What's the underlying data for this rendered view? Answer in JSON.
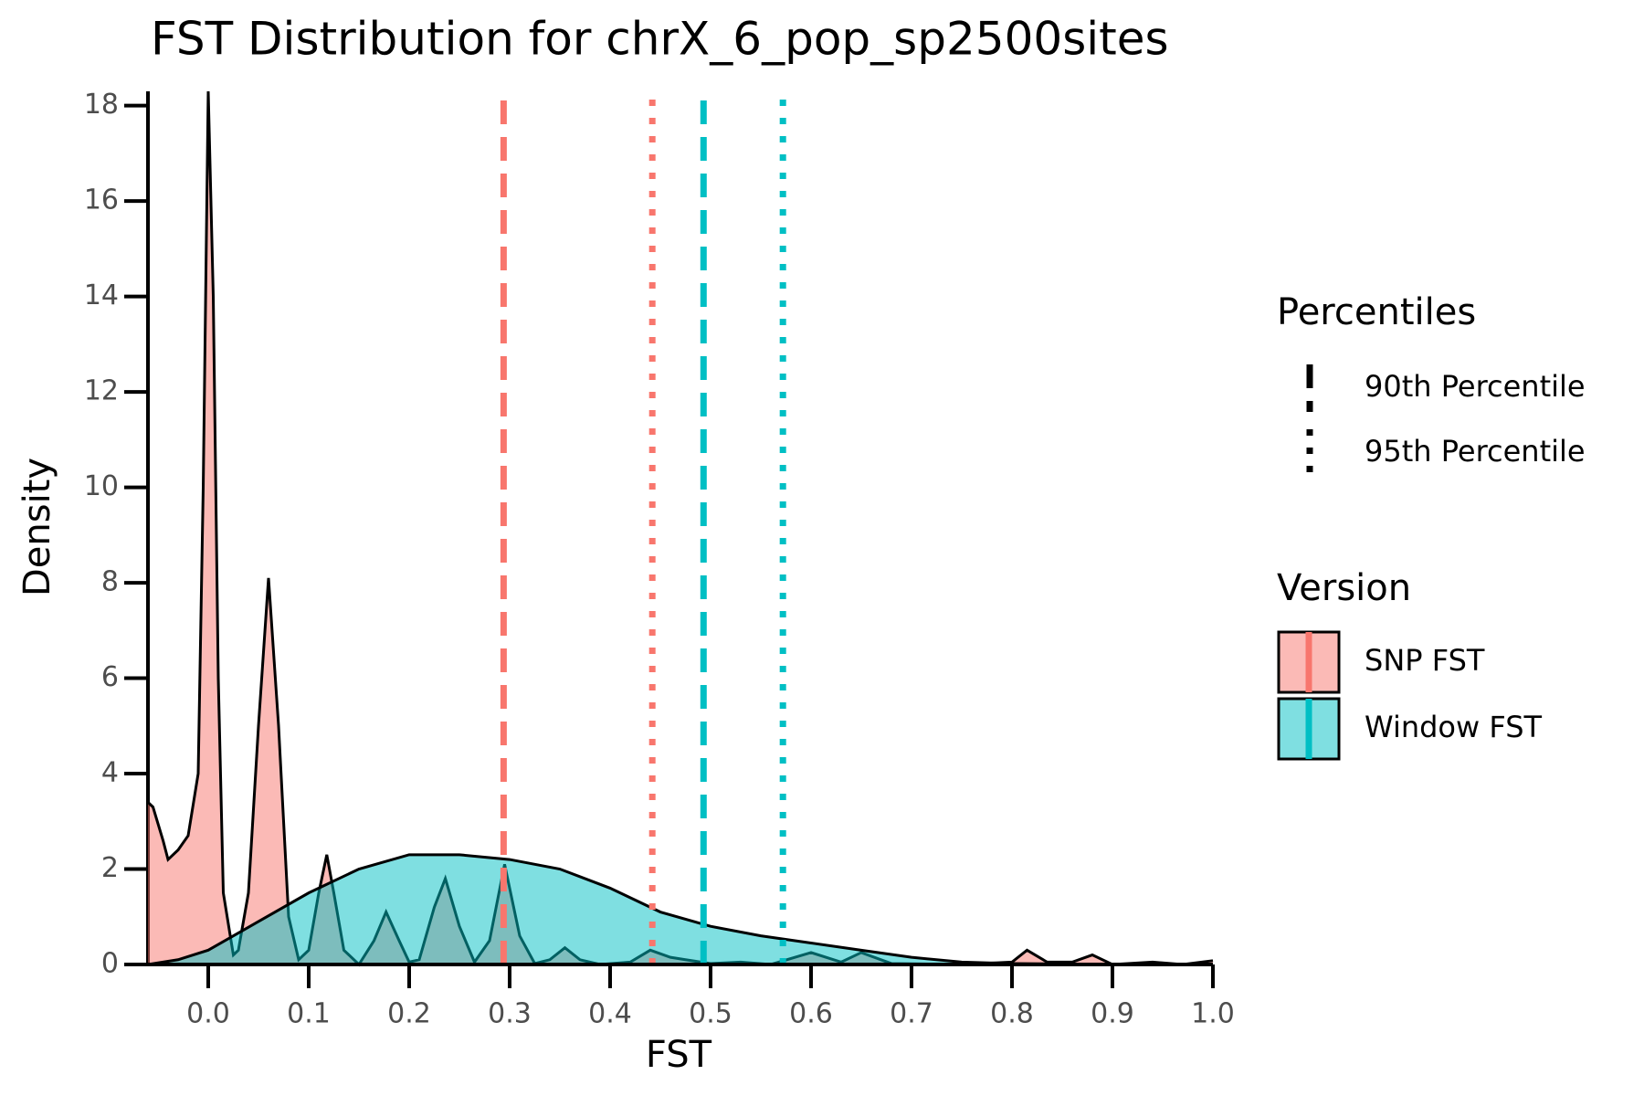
{
  "chart_data": {
    "type": "density",
    "title": "FST Distribution for chrX_6_pop_sp2500sites",
    "x_label": "FST",
    "y_label": "Density",
    "xlim": [
      -0.06,
      1.0
    ],
    "ylim": [
      0,
      18.3
    ],
    "xticks": [
      {
        "value": 0,
        "label": "0.0"
      },
      0.1,
      0.2,
      0.3,
      0.4,
      0.5,
      0.6,
      0.7,
      0.8,
      0.9,
      {
        "value": 1,
        "label": "1.0"
      }
    ],
    "yticks": [
      0,
      2,
      4,
      6,
      8,
      10,
      12,
      14,
      16,
      18
    ],
    "legend_title": "Version",
    "percentile_legend_title": "Percentiles",
    "line_styles": [
      {
        "label": "90th Percentile",
        "dash": "dashed"
      },
      {
        "label": "95th Percentile",
        "dash": "dotted"
      }
    ],
    "series": [
      {
        "name": "SNP FST",
        "color": "#F8766D",
        "percentiles": [
          0.294,
          0.442
        ],
        "x": [
          -0.06,
          -0.055,
          -0.045,
          -0.04,
          -0.03,
          -0.02,
          -0.01,
          -0.005,
          0,
          0.005,
          0.01,
          0.015,
          0.025,
          0.03,
          0.04,
          0.05,
          0.06,
          0.07,
          0.08,
          0.09,
          0.1,
          0.11,
          0.118,
          0.125,
          0.135,
          0.15,
          0.165,
          0.177,
          0.19,
          0.2,
          0.21,
          0.225,
          0.236,
          0.25,
          0.265,
          0.28,
          0.295,
          0.31,
          0.325,
          0.34,
          0.355,
          0.37,
          0.39,
          0.42,
          0.44,
          0.46,
          0.475,
          0.5,
          0.53,
          0.56,
          0.6,
          0.63,
          0.65,
          0.68,
          0.75,
          0.8,
          0.815,
          0.835,
          0.86,
          0.88,
          0.9,
          0.94,
          0.97,
          1.0
        ],
        "values": [
          3.4,
          3.3,
          2.6,
          2.2,
          2.4,
          2.7,
          4,
          10,
          18.3,
          14,
          6,
          1.5,
          0.2,
          0.3,
          1.5,
          5,
          8.1,
          5,
          1,
          0.1,
          0.3,
          1.5,
          2.3,
          1.5,
          0.3,
          0,
          0.5,
          1.1,
          0.5,
          0.05,
          0.1,
          1.2,
          1.8,
          0.8,
          0.05,
          0.5,
          2.1,
          0.6,
          0.02,
          0.1,
          0.35,
          0.1,
          0,
          0.05,
          0.3,
          0.15,
          0.1,
          0.02,
          0.05,
          0,
          0.25,
          0.05,
          0.25,
          0.02,
          0,
          0.05,
          0.3,
          0.05,
          0.05,
          0.2,
          0,
          0.05,
          0,
          0.08
        ]
      },
      {
        "name": "Window FST",
        "color": "#00BFC4",
        "percentiles": [
          0.493,
          0.572
        ],
        "x": [
          -0.06,
          -0.03,
          0,
          0.05,
          0.1,
          0.15,
          0.2,
          0.25,
          0.3,
          0.35,
          0.4,
          0.45,
          0.5,
          0.55,
          0.6,
          0.65,
          0.7,
          0.75,
          0.8,
          0.9,
          1.0
        ],
        "values": [
          0,
          0.1,
          0.3,
          0.9,
          1.5,
          2.0,
          2.3,
          2.3,
          2.2,
          2.0,
          1.6,
          1.1,
          0.8,
          0.6,
          0.45,
          0.3,
          0.15,
          0.05,
          0.02,
          0,
          0
        ]
      }
    ]
  }
}
